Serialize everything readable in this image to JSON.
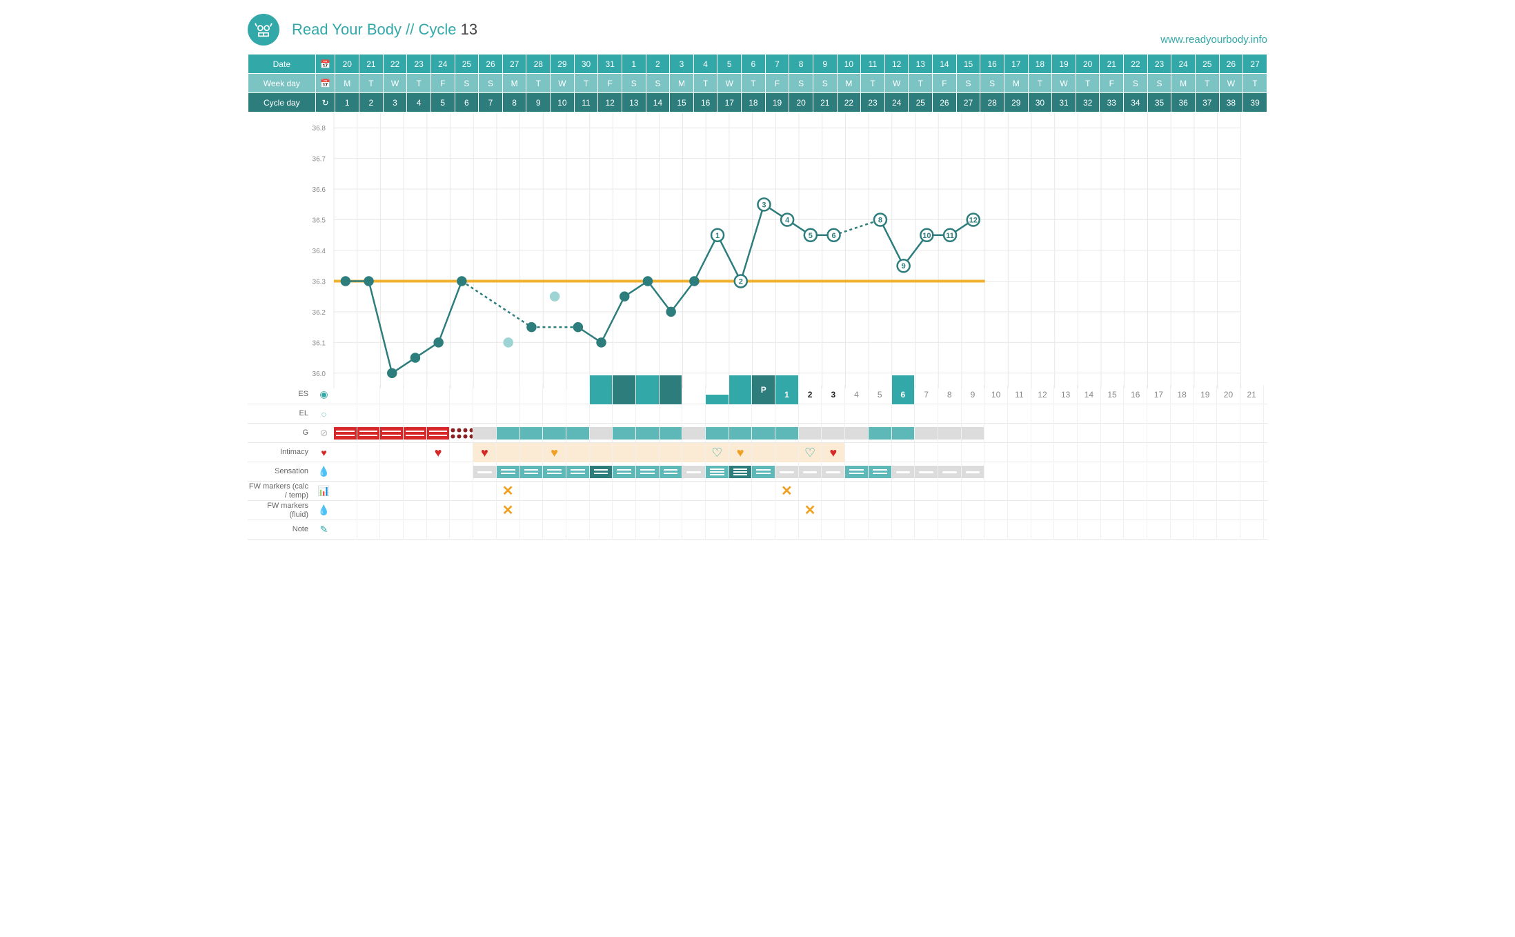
{
  "header": {
    "app_name": "Read Your Body",
    "separator": "//",
    "cycle_label": "Cycle",
    "cycle_number": "13",
    "url": "www.readyourbody.info"
  },
  "table_headers": {
    "date_label": "Date",
    "weekday_label": "Week day",
    "cycleday_label": "Cycle day"
  },
  "row_labels": {
    "es": "ES",
    "el": "EL",
    "g": "G",
    "intimacy": "Intimacy",
    "sensation": "Sensation",
    "fw_calc": "FW markers (calc / temp)",
    "fw_fluid": "FW markers (fluid)",
    "note": "Note"
  },
  "dates": [
    "20",
    "21",
    "22",
    "23",
    "24",
    "25",
    "26",
    "27",
    "28",
    "29",
    "30",
    "31",
    "1",
    "2",
    "3",
    "4",
    "5",
    "6",
    "7",
    "8",
    "9",
    "10",
    "11",
    "12",
    "13",
    "14",
    "15",
    "16",
    "17",
    "18",
    "19",
    "20",
    "21",
    "22",
    "23",
    "24",
    "25",
    "26",
    "27"
  ],
  "weekdays": [
    "M",
    "T",
    "W",
    "T",
    "F",
    "S",
    "S",
    "M",
    "T",
    "W",
    "T",
    "F",
    "S",
    "S",
    "M",
    "T",
    "W",
    "T",
    "F",
    "S",
    "S",
    "M",
    "T",
    "W",
    "T",
    "F",
    "S",
    "S",
    "M",
    "T",
    "W",
    "T",
    "F",
    "S",
    "S",
    "M",
    "T",
    "W",
    "T"
  ],
  "cycledays": [
    "1",
    "2",
    "3",
    "4",
    "5",
    "6",
    "7",
    "8",
    "9",
    "10",
    "11",
    "12",
    "13",
    "14",
    "15",
    "16",
    "17",
    "18",
    "19",
    "20",
    "21",
    "22",
    "23",
    "24",
    "25",
    "26",
    "27",
    "28",
    "29",
    "30",
    "31",
    "32",
    "33",
    "34",
    "35",
    "36",
    "37",
    "38",
    "39"
  ],
  "chart": {
    "type": "line",
    "ylim": [
      35.95,
      36.85
    ],
    "ytick_labels": [
      "36.0",
      "36.1",
      "36.2",
      "36.3",
      "36.4",
      "36.5",
      "36.6",
      "36.7",
      "36.8"
    ],
    "ytick_values": [
      36.0,
      36.1,
      36.2,
      36.3,
      36.4,
      36.5,
      36.6,
      36.7,
      36.8
    ],
    "coverline": 36.3,
    "coverline_end_day": 28,
    "coverline_color": "#f0b030",
    "line_color": "#2d7d7d",
    "point_fill": "#2d7d7d",
    "point_radius": 6,
    "numbered_fill": "#ffffff",
    "grid_color": "#e8e8e8",
    "background": "#ffffff",
    "label_color": "#888888",
    "label_fontsize": 10,
    "temps": [
      {
        "day": 1,
        "t": 36.3,
        "dotted_next": false
      },
      {
        "day": 2,
        "t": 36.3,
        "dotted_next": false
      },
      {
        "day": 3,
        "t": 36.0,
        "dotted_next": false
      },
      {
        "day": 4,
        "t": 36.05,
        "dotted_next": false
      },
      {
        "day": 5,
        "t": 36.1,
        "dotted_next": false
      },
      {
        "day": 6,
        "t": 36.3,
        "dotted_next": true
      },
      {
        "day": 8,
        "t": 36.1,
        "excluded": true
      },
      {
        "day": 9,
        "t": 36.15,
        "dotted_next": true
      },
      {
        "day": 10,
        "t": 36.25,
        "excluded": true
      },
      {
        "day": 11,
        "t": 36.15,
        "dotted_next": false
      },
      {
        "day": 12,
        "t": 36.1,
        "dotted_next": false
      },
      {
        "day": 13,
        "t": 36.25,
        "dotted_next": false
      },
      {
        "day": 14,
        "t": 36.3,
        "dotted_next": false
      },
      {
        "day": 15,
        "t": 36.2,
        "dotted_next": false
      },
      {
        "day": 16,
        "t": 36.3,
        "dotted_next": false
      },
      {
        "day": 17,
        "t": 36.45,
        "num": "1"
      },
      {
        "day": 18,
        "t": 36.3,
        "num": "2"
      },
      {
        "day": 19,
        "t": 36.55,
        "num": "3"
      },
      {
        "day": 20,
        "t": 36.5,
        "num": "4"
      },
      {
        "day": 21,
        "t": 36.45,
        "num": "5"
      },
      {
        "day": 22,
        "t": 36.45,
        "num": "6",
        "dotted_next": true
      },
      {
        "day": 24,
        "t": 36.5,
        "num": "8"
      },
      {
        "day": 25,
        "t": 36.35,
        "num": "9"
      },
      {
        "day": 26,
        "t": 36.45,
        "num": "10"
      },
      {
        "day": 27,
        "t": 36.45,
        "num": "11"
      },
      {
        "day": 28,
        "t": 36.5,
        "num": "12"
      }
    ],
    "excluded_color": "#9fd4d4"
  },
  "es_row": {
    "bars": [
      {
        "day": 12,
        "type": "full"
      },
      {
        "day": 13,
        "type": "dark"
      },
      {
        "day": 14,
        "type": "full"
      },
      {
        "day": 15,
        "type": "dark"
      },
      {
        "day": 17,
        "type": "half"
      },
      {
        "day": 18,
        "type": "full"
      },
      {
        "day": 19,
        "type": "dark",
        "label": "P"
      },
      {
        "day": 20,
        "type": "full"
      },
      {
        "day": 25,
        "type": "full"
      }
    ],
    "counts": [
      {
        "day": 20,
        "n": "1",
        "bold": true
      },
      {
        "day": 21,
        "n": "2",
        "bold": true
      },
      {
        "day": 22,
        "n": "3",
        "bold": true
      },
      {
        "day": 23,
        "n": "4"
      },
      {
        "day": 24,
        "n": "5"
      },
      {
        "day": 25,
        "n": "6"
      },
      {
        "day": 26,
        "n": "7"
      },
      {
        "day": 27,
        "n": "8"
      },
      {
        "day": 28,
        "n": "9"
      },
      {
        "day": 29,
        "n": "10"
      },
      {
        "day": 30,
        "n": "11"
      },
      {
        "day": 31,
        "n": "12"
      },
      {
        "day": 32,
        "n": "13"
      },
      {
        "day": 33,
        "n": "14"
      },
      {
        "day": 34,
        "n": "15"
      },
      {
        "day": 35,
        "n": "16"
      },
      {
        "day": 36,
        "n": "17"
      },
      {
        "day": 37,
        "n": "18"
      },
      {
        "day": 38,
        "n": "19"
      },
      {
        "day": 39,
        "n": "20"
      },
      {
        "day": 40,
        "n": "21"
      }
    ]
  },
  "g_row": [
    {
      "day": 1,
      "type": "red"
    },
    {
      "day": 2,
      "type": "red"
    },
    {
      "day": 3,
      "type": "red"
    },
    {
      "day": 4,
      "type": "red"
    },
    {
      "day": 5,
      "type": "red"
    },
    {
      "day": 6,
      "type": "dotted"
    },
    {
      "day": 7,
      "type": "gray"
    },
    {
      "day": 8,
      "type": "teal"
    },
    {
      "day": 9,
      "type": "teal"
    },
    {
      "day": 10,
      "type": "teal"
    },
    {
      "day": 11,
      "type": "teal"
    },
    {
      "day": 12,
      "type": "gray"
    },
    {
      "day": 13,
      "type": "teal"
    },
    {
      "day": 14,
      "type": "teal"
    },
    {
      "day": 15,
      "type": "teal"
    },
    {
      "day": 16,
      "type": "gray"
    },
    {
      "day": 17,
      "type": "teal"
    },
    {
      "day": 18,
      "type": "teal"
    },
    {
      "day": 19,
      "type": "teal"
    },
    {
      "day": 20,
      "type": "teal"
    },
    {
      "day": 21,
      "type": "gray"
    },
    {
      "day": 22,
      "type": "gray"
    },
    {
      "day": 23,
      "type": "gray"
    },
    {
      "day": 24,
      "type": "teal"
    },
    {
      "day": 25,
      "type": "teal"
    },
    {
      "day": 26,
      "type": "gray"
    },
    {
      "day": 27,
      "type": "gray"
    },
    {
      "day": 28,
      "type": "gray"
    }
  ],
  "intimacy_row": {
    "bg_range": [
      7,
      22
    ],
    "marks": [
      {
        "day": 5,
        "type": "heart"
      },
      {
        "day": 7,
        "type": "heart"
      },
      {
        "day": 10,
        "type": "heart-gold"
      },
      {
        "day": 17,
        "type": "heart-outline"
      },
      {
        "day": 18,
        "type": "heart-gold"
      },
      {
        "day": 21,
        "type": "heart-outline"
      },
      {
        "day": 22,
        "type": "heart"
      }
    ]
  },
  "sensation_row": [
    {
      "day": 7,
      "type": "gray",
      "lines": 1
    },
    {
      "day": 8,
      "type": "teal",
      "lines": 2
    },
    {
      "day": 9,
      "type": "teal",
      "lines": 2
    },
    {
      "day": 10,
      "type": "teal",
      "lines": 2
    },
    {
      "day": 11,
      "type": "teal",
      "lines": 2
    },
    {
      "day": 12,
      "type": "dark",
      "lines": 2
    },
    {
      "day": 13,
      "type": "teal",
      "lines": 2
    },
    {
      "day": 14,
      "type": "teal",
      "lines": 2
    },
    {
      "day": 15,
      "type": "teal",
      "lines": 2
    },
    {
      "day": 16,
      "type": "gray",
      "lines": 1
    },
    {
      "day": 17,
      "type": "teal",
      "lines": 3
    },
    {
      "day": 18,
      "type": "dark",
      "lines": 3
    },
    {
      "day": 19,
      "type": "teal",
      "lines": 2
    },
    {
      "day": 20,
      "type": "gray",
      "lines": 1
    },
    {
      "day": 21,
      "type": "gray",
      "lines": 1
    },
    {
      "day": 22,
      "type": "gray",
      "lines": 1
    },
    {
      "day": 23,
      "type": "teal",
      "lines": 2
    },
    {
      "day": 24,
      "type": "teal",
      "lines": 2
    },
    {
      "day": 25,
      "type": "gray",
      "lines": 1
    },
    {
      "day": 26,
      "type": "gray",
      "lines": 1
    },
    {
      "day": 27,
      "type": "gray",
      "lines": 1
    },
    {
      "day": 28,
      "type": "gray",
      "lines": 1
    }
  ],
  "fw_calc_marks": [
    8,
    20
  ],
  "fw_fluid_marks": [
    8,
    21
  ],
  "colors": {
    "teal": "#33a8a8",
    "teal_light": "#7cc4c4",
    "teal_dark": "#2d7d7d",
    "red": "#d62828",
    "gold": "#f0a020",
    "gray": "#dcdcdc",
    "cream": "#fcebd4"
  }
}
